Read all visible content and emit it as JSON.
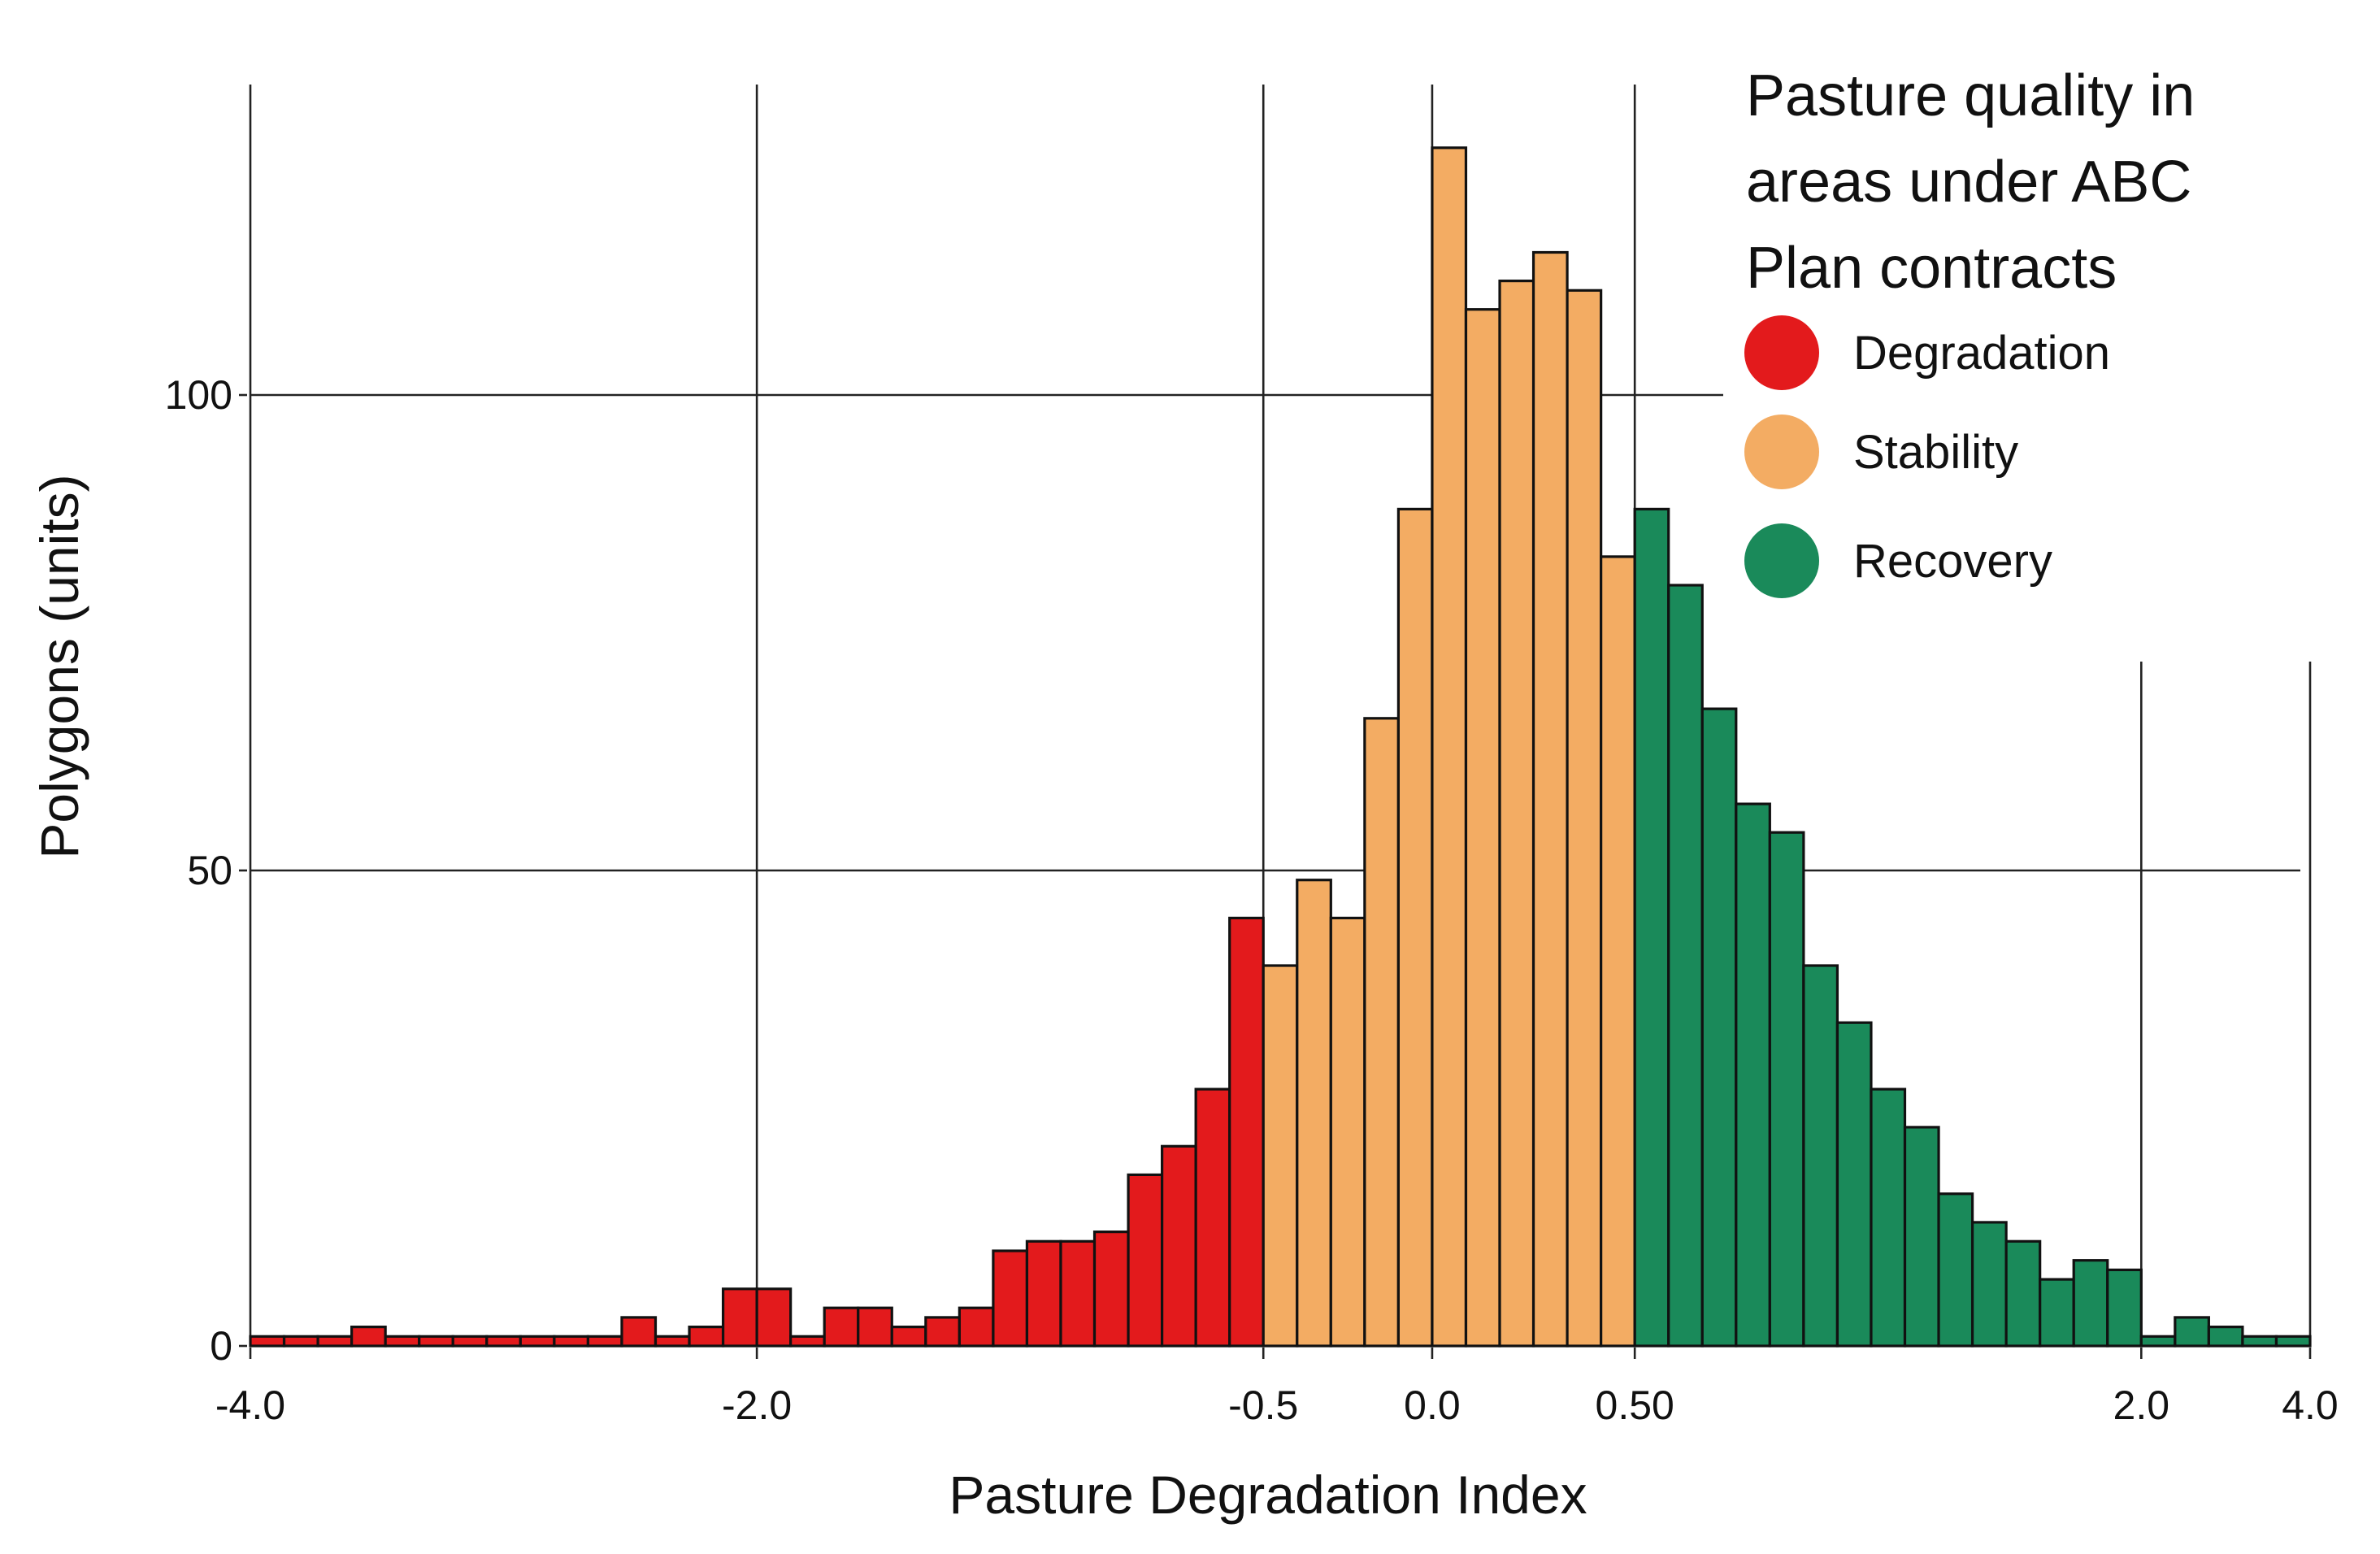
{
  "chart_data": {
    "type": "bar",
    "subtype": "histogram",
    "xlabel": "Pasture Degradation Index",
    "ylabel": "Polygons (units)",
    "ylim": [
      0,
      132
    ],
    "y_ticks": [
      {
        "value": 0,
        "label": "0"
      },
      {
        "value": 50,
        "label": "50"
      },
      {
        "value": 100,
        "label": "100"
      }
    ],
    "x_ticks": [
      {
        "index": 0,
        "label": "-4.0"
      },
      {
        "index": 15,
        "label": "-2.0"
      },
      {
        "index": 30,
        "label": "-0.5"
      },
      {
        "index": 35,
        "label": "0.0"
      },
      {
        "index": 41,
        "label": "0.50"
      },
      {
        "index": 56,
        "label": "2.0"
      },
      {
        "index": 61,
        "label": "4.0"
      }
    ],
    "bin_edge_count": 62,
    "legend": {
      "title_lines": [
        "Pasture quality in",
        "areas under ABC",
        "Plan contracts"
      ],
      "position": "top-right",
      "items": [
        {
          "label": "Degradation",
          "color": "#e31a1c"
        },
        {
          "label": "Stability",
          "color": "#f3ac63"
        },
        {
          "label": "Recovery",
          "color": "#1a8a5a"
        }
      ]
    },
    "series": [
      {
        "category": "Degradation",
        "color": "#e31a1c",
        "start_index": 0,
        "values": [
          1,
          1,
          1,
          2,
          1,
          1,
          1,
          1,
          1,
          1,
          1,
          3,
          1,
          2,
          6,
          6,
          1,
          4,
          4,
          2,
          3,
          4,
          10,
          11,
          11,
          12,
          18,
          21,
          27,
          45
        ]
      },
      {
        "category": "Stability",
        "color": "#f3ac63",
        "start_index": 30,
        "values": [
          40,
          49,
          45,
          66,
          88,
          126,
          109,
          112,
          115,
          111,
          83
        ]
      },
      {
        "category": "Recovery",
        "color": "#1a8a5a",
        "start_index": 41,
        "values": [
          88,
          80,
          67,
          57,
          54,
          40,
          34,
          27,
          23,
          16,
          13,
          11,
          7,
          9,
          8,
          1,
          3,
          2,
          1,
          1
        ]
      }
    ]
  }
}
